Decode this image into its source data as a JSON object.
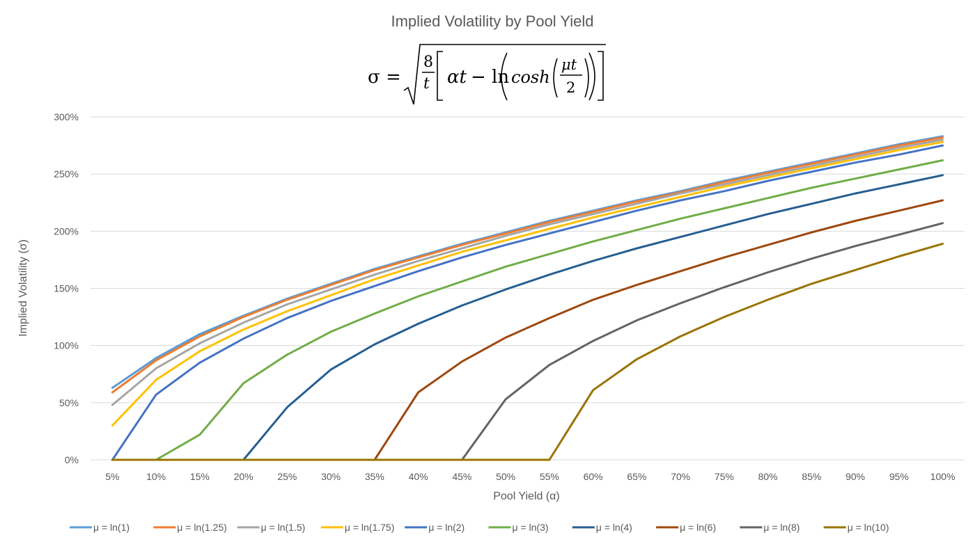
{
  "chart_data": {
    "type": "line",
    "title": "Implied Volatility by Pool Yield",
    "subtitle": "σ = √( 8/t [ αt − ln( cosh( μt/2 ) ) ] )",
    "xlabel": "Pool Yield (α)",
    "ylabel": "Implied Volatility (σ)",
    "ylim": [
      0,
      300
    ],
    "yticks": [
      "0%",
      "50%",
      "100%",
      "150%",
      "200%",
      "250%",
      "300%"
    ],
    "grid": true,
    "legend_position": "bottom",
    "categories": [
      "5%",
      "10%",
      "15%",
      "20%",
      "25%",
      "30%",
      "35%",
      "40%",
      "45%",
      "50%",
      "55%",
      "60%",
      "65%",
      "70%",
      "75%",
      "80%",
      "85%",
      "90%",
      "95%",
      "100%"
    ],
    "series": [
      {
        "name": "μ = ln(1)",
        "color": "#5B9BD5",
        "values": [
          63,
          89,
          110,
          126,
          141,
          154,
          167,
          178,
          189,
          199,
          209,
          218,
          227,
          235,
          244,
          252,
          260,
          268,
          276,
          283
        ]
      },
      {
        "name": "μ = ln(1.25)",
        "color": "#ED7D31",
        "values": [
          59,
          87,
          108,
          125,
          140,
          153,
          166,
          177,
          188,
          198,
          208,
          217,
          226,
          234,
          243,
          251,
          259,
          267,
          275,
          282
        ]
      },
      {
        "name": "μ = ln(1.5)",
        "color": "#A5A5A5",
        "values": [
          48,
          80,
          102,
          120,
          136,
          149,
          162,
          174,
          185,
          196,
          206,
          215,
          224,
          233,
          241,
          249,
          257,
          265,
          273,
          280
        ]
      },
      {
        "name": "μ = ln(1.75)",
        "color": "#FFC000",
        "values": [
          30,
          70,
          95,
          114,
          130,
          144,
          158,
          170,
          182,
          192,
          202,
          212,
          221,
          230,
          239,
          247,
          255,
          263,
          271,
          278
        ]
      },
      {
        "name": "μ = ln(2)",
        "color": "#4472C4",
        "values": [
          0,
          57,
          85,
          106,
          124,
          139,
          152,
          165,
          177,
          188,
          198,
          208,
          218,
          227,
          235,
          244,
          252,
          260,
          267,
          275
        ]
      },
      {
        "name": "μ = ln(3)",
        "color": "#70AD47",
        "values": [
          0,
          0,
          22,
          67,
          92,
          112,
          128,
          143,
          156,
          169,
          180,
          191,
          201,
          211,
          220,
          229,
          238,
          246,
          254,
          262
        ]
      },
      {
        "name": "μ = ln(4)",
        "color": "#255E91",
        "values": [
          0,
          0,
          0,
          0,
          46,
          79,
          101,
          119,
          135,
          149,
          162,
          174,
          185,
          195,
          205,
          215,
          224,
          233,
          241,
          249
        ]
      },
      {
        "name": "μ = ln(6)",
        "color": "#9E480E",
        "values": [
          0,
          0,
          0,
          0,
          0,
          0,
          0,
          59,
          86,
          107,
          124,
          140,
          153,
          165,
          177,
          188,
          199,
          209,
          218,
          227
        ]
      },
      {
        "name": "μ = ln(8)",
        "color": "#636363",
        "values": [
          0,
          0,
          0,
          0,
          0,
          0,
          0,
          0,
          0,
          53,
          83,
          104,
          122,
          137,
          151,
          164,
          176,
          187,
          197,
          207
        ]
      },
      {
        "name": "μ = ln(10)",
        "color": "#997300",
        "values": [
          0,
          0,
          0,
          0,
          0,
          0,
          0,
          0,
          0,
          0,
          0,
          61,
          88,
          108,
          125,
          140,
          154,
          166,
          178,
          189
        ]
      }
    ]
  }
}
